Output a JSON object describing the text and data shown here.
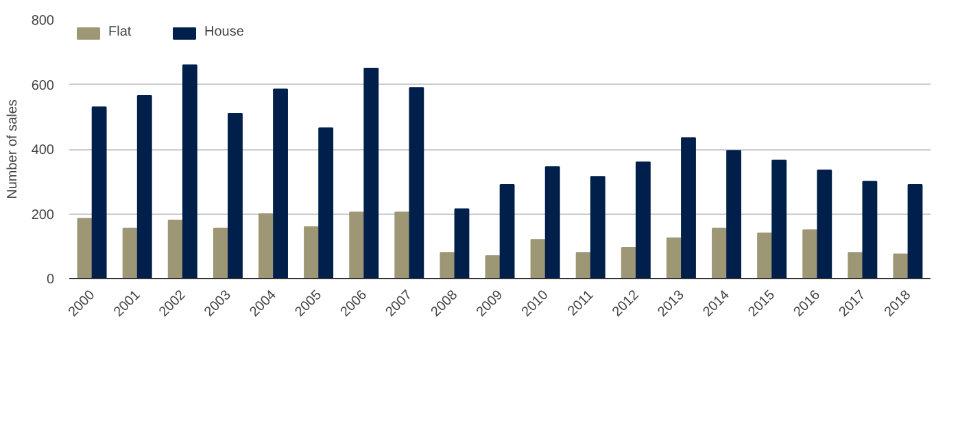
{
  "chart_data": {
    "type": "bar",
    "ylabel": "Number of sales",
    "categories": [
      "2000",
      "2001",
      "2002",
      "2003",
      "2004",
      "2005",
      "2006",
      "2007",
      "2008",
      "2009",
      "2010",
      "2011",
      "2012",
      "2013",
      "2014",
      "2015",
      "2016",
      "2017",
      "2018"
    ],
    "series": [
      {
        "name": "Flat",
        "color": "#9d9775",
        "values": [
          185,
          155,
          180,
          155,
          200,
          160,
          205,
          205,
          80,
          70,
          120,
          80,
          95,
          125,
          155,
          140,
          150,
          80,
          75
        ]
      },
      {
        "name": "House",
        "color": "#001f4a",
        "values": [
          530,
          565,
          660,
          510,
          585,
          465,
          650,
          590,
          215,
          290,
          345,
          315,
          360,
          435,
          395,
          365,
          335,
          300,
          290
        ]
      }
    ],
    "ylim": [
      0,
      800
    ],
    "yticks": [
      0,
      200,
      400,
      600,
      800
    ],
    "grid": "y",
    "legend": "top left"
  }
}
